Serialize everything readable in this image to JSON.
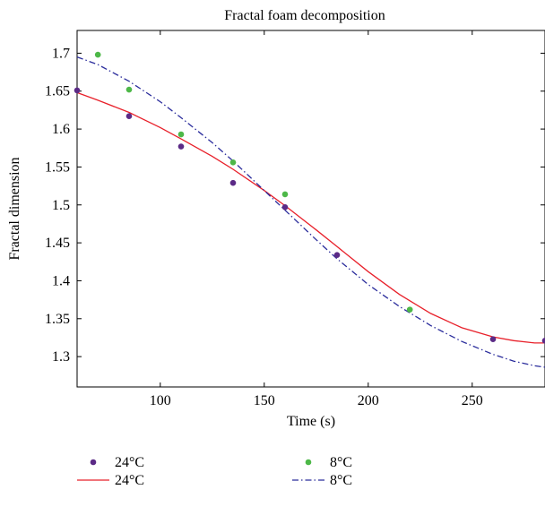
{
  "chart_data": {
    "type": "scatter",
    "title": "Fractal foam decomposition",
    "xlabel": "Time (s)",
    "ylabel": "Fractal dimension",
    "xlim": [
      60,
      285
    ],
    "ylim": [
      1.26,
      1.73
    ],
    "xticks": [
      100,
      150,
      200,
      250
    ],
    "xtick_labels": [
      "100",
      "150",
      "200",
      "250"
    ],
    "yticks": [
      1.3,
      1.35,
      1.4,
      1.45,
      1.5,
      1.55,
      1.6,
      1.65,
      1.7
    ],
    "ytick_labels": [
      "1.3",
      "1.35",
      "1.4",
      "1.45",
      "1.5",
      "1.55",
      "1.6",
      "1.65",
      "1.7"
    ],
    "grid": false,
    "legend_position": "bottom",
    "series": [
      {
        "name": "24°C",
        "kind": "points",
        "color": "#5b2a86",
        "x": [
          60,
          85,
          110,
          135,
          160,
          185,
          260,
          285
        ],
        "y": [
          1.651,
          1.617,
          1.577,
          1.529,
          1.497,
          1.434,
          1.323,
          1.321
        ]
      },
      {
        "name": "8°C",
        "kind": "points",
        "color": "#4db848",
        "x": [
          70,
          85,
          110,
          135,
          160,
          220
        ],
        "y": [
          1.698,
          1.652,
          1.593,
          1.556,
          1.514,
          1.362
        ]
      },
      {
        "name": "24°C",
        "kind": "line",
        "dash": "solid",
        "color": "#e8202a",
        "x": [
          60,
          70,
          85,
          100,
          110,
          125,
          135,
          150,
          160,
          175,
          185,
          200,
          215,
          230,
          245,
          260,
          270,
          280,
          285
        ],
        "y": [
          1.648,
          1.638,
          1.622,
          1.602,
          1.587,
          1.564,
          1.547,
          1.519,
          1.499,
          1.467,
          1.445,
          1.412,
          1.382,
          1.357,
          1.338,
          1.326,
          1.321,
          1.318,
          1.318
        ]
      },
      {
        "name": "8°C",
        "kind": "line",
        "dash": "dashdot",
        "color": "#2b2d9c",
        "x": [
          60,
          70,
          85,
          100,
          110,
          125,
          135,
          150,
          160,
          175,
          185,
          200,
          215,
          230,
          245,
          260,
          270,
          280,
          285
        ],
        "y": [
          1.695,
          1.685,
          1.663,
          1.636,
          1.615,
          1.582,
          1.558,
          1.519,
          1.493,
          1.454,
          1.429,
          1.395,
          1.366,
          1.341,
          1.32,
          1.303,
          1.294,
          1.288,
          1.286
        ]
      }
    ],
    "legend": [
      {
        "label": "24°C",
        "kind": "points",
        "color": "#5b2a86"
      },
      {
        "label": "8°C",
        "kind": "points",
        "color": "#4db848"
      },
      {
        "label": "24°C",
        "kind": "line",
        "dash": "solid",
        "color": "#e8202a"
      },
      {
        "label": "8°C",
        "kind": "line",
        "dash": "dashdot",
        "color": "#2b2d9c"
      }
    ]
  }
}
